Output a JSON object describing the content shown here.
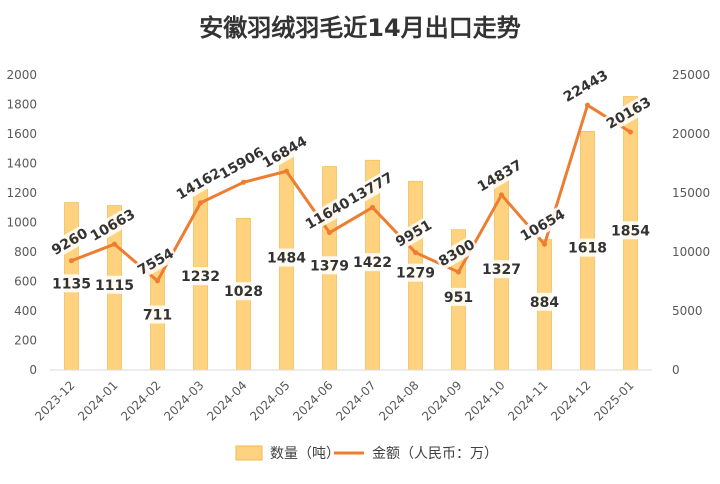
{
  "chart_data": {
    "type": "bar",
    "title": "安徽羽绒羽毛近14月出口走势",
    "categories": [
      "2023-12",
      "2024-01",
      "2024-02",
      "2024-03",
      "2024-04",
      "2024-05",
      "2024-06",
      "2024-07",
      "2024-08",
      "2024-09",
      "2024-10",
      "2024-11",
      "2024-12",
      "2025-01"
    ],
    "series": [
      {
        "name": "数量（吨）",
        "type": "bar",
        "axis": "left",
        "color": "#FFD27F",
        "values": [
          1135,
          1115,
          711,
          1232,
          1028,
          1484,
          1379,
          1422,
          1279,
          951,
          1327,
          884,
          1618,
          1854
        ],
        "labels": [
          "1135",
          "1115",
          "711",
          "1232",
          "1028",
          "1484",
          "1379",
          "1422",
          "1279",
          "951",
          "1327",
          "884",
          "1618",
          "1854"
        ]
      },
      {
        "name": "金额（人民币：万）",
        "type": "line",
        "axis": "right",
        "color": "#ED7D31",
        "values": [
          9260,
          10663,
          7554,
          14162,
          15906,
          16844,
          11640,
          13777,
          9951,
          8300,
          14837,
          10654,
          22443,
          20163
        ],
        "labels": [
          "9260",
          "10663",
          "7554",
          "14162",
          "15906",
          "16844",
          "11640",
          "13777",
          "9951",
          "8300",
          "14837",
          "10654",
          "22443",
          "20163"
        ]
      }
    ],
    "y_left": {
      "min": 0,
      "max": 2000,
      "step": 200,
      "ticks": [
        "0",
        "200",
        "400",
        "600",
        "800",
        "1000",
        "1200",
        "1400",
        "1600",
        "1800",
        "2000"
      ]
    },
    "y_right": {
      "min": 0,
      "max": 25000,
      "step": 5000,
      "ticks": [
        "0",
        "5000",
        "10000",
        "15000",
        "20000",
        "25000"
      ]
    },
    "grid": false,
    "legend_position": "bottom"
  }
}
